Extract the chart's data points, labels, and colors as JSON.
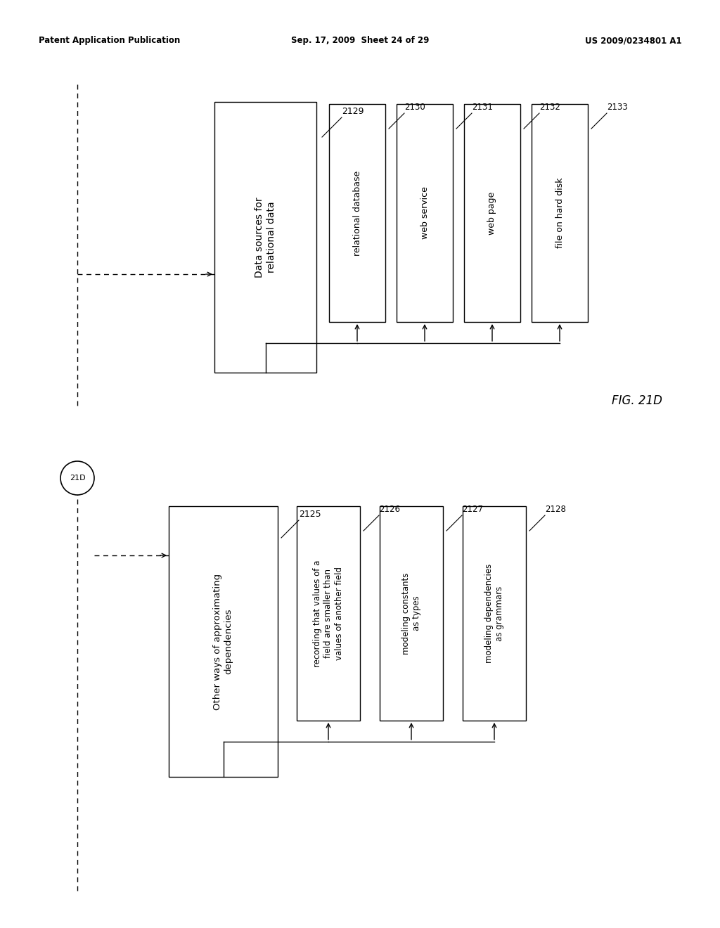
{
  "header_left": "Patent Application Publication",
  "header_mid": "Sep. 17, 2009  Sheet 24 of 29",
  "header_right": "US 2009/0234801 A1",
  "fig_label": "FIG. 21D",
  "connector_label": "21D",
  "top_main_box": {
    "label": "Data sources for\nrelational data",
    "ref": "2129"
  },
  "top_sub_boxes": [
    {
      "label": "relational database",
      "ref": "2130"
    },
    {
      "label": "web service",
      "ref": "2131"
    },
    {
      "label": "web page",
      "ref": "2132"
    },
    {
      "label": "file on hard disk",
      "ref": "2133"
    }
  ],
  "bottom_main_box": {
    "label": "Other ways of approximating\ndependencies",
    "ref": "2125"
  },
  "bottom_sub_boxes": [
    {
      "label": "recording that values of a\nfield are smaller than\nvalues of another field",
      "ref": "2126"
    },
    {
      "label": "modeling constants\nas types",
      "ref": "2127"
    },
    {
      "label": "modeling dependencies\nas grammars",
      "ref": "2128"
    }
  ],
  "bg_color": "#ffffff",
  "box_color": "#000000",
  "text_color": "#000000"
}
